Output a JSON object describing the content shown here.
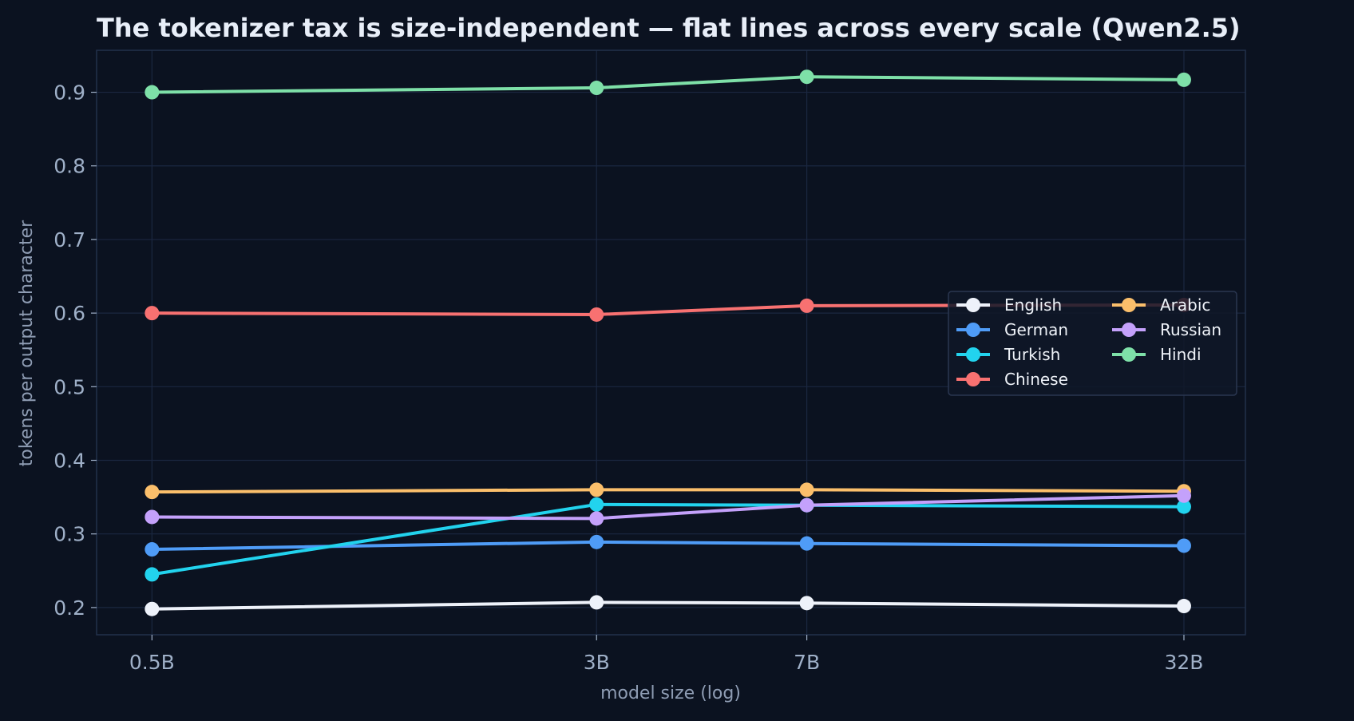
{
  "colors": {
    "background": "#0b1220",
    "plot_border": "#23314a",
    "grid": "#1b2740",
    "title": "#e8eef8",
    "tick": "#9fb0c8",
    "axis_label": "#8e9cb3",
    "legend_bg": "#0f1828",
    "legend_border": "#2a3650",
    "legend_text": "#eef2f8"
  },
  "chart_data": {
    "type": "line",
    "title": "The tokenizer tax is size-independent — flat lines across every scale (Qwen2.5)",
    "xlabel": "model size (log)",
    "ylabel": "tokens per output character",
    "x_scale": "log",
    "x": [
      0.5,
      3,
      7,
      32
    ],
    "categories": [
      "0.5B",
      "3B",
      "7B",
      "32B"
    ],
    "xlim": [
      0.4,
      41
    ],
    "ylim": [
      0.163,
      0.957
    ],
    "yticks": [
      0.2,
      0.3,
      0.4,
      0.5,
      0.6,
      0.7,
      0.8,
      0.9
    ],
    "ytick_labels": [
      "0.2",
      "0.3",
      "0.4",
      "0.5",
      "0.6",
      "0.7",
      "0.8",
      "0.9"
    ],
    "grid": true,
    "legend_position": "center-right",
    "legend_columns": 2,
    "series": [
      {
        "name": "English",
        "color": "#eef2fa",
        "values": [
          0.198,
          0.207,
          0.206,
          0.202
        ]
      },
      {
        "name": "German",
        "color": "#4f9cf7",
        "values": [
          0.279,
          0.289,
          0.287,
          0.284
        ]
      },
      {
        "name": "Turkish",
        "color": "#22d3ee",
        "values": [
          0.245,
          0.34,
          0.339,
          0.337
        ]
      },
      {
        "name": "Chinese",
        "color": "#f87171",
        "values": [
          0.6,
          0.598,
          0.61,
          0.611
        ]
      },
      {
        "name": "Arabic",
        "color": "#fbbf6b",
        "values": [
          0.357,
          0.36,
          0.36,
          0.358
        ]
      },
      {
        "name": "Russian",
        "color": "#c4a1fb",
        "values": [
          0.323,
          0.321,
          0.339,
          0.352
        ]
      },
      {
        "name": "Hindi",
        "color": "#7ee0a8",
        "values": [
          0.9,
          0.906,
          0.921,
          0.917
        ]
      }
    ]
  }
}
